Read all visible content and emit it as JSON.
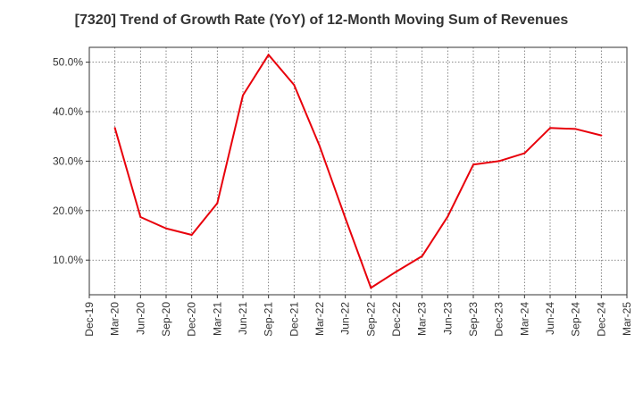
{
  "chart_data": {
    "type": "line",
    "title": "[7320]  Trend of Growth Rate (YoY) of 12-Month Moving Sum of Revenues",
    "xlabel": "",
    "ylabel": "",
    "x_ticks": [
      "Dec-19",
      "Mar-20",
      "Jun-20",
      "Sep-20",
      "Dec-20",
      "Mar-21",
      "Jun-21",
      "Sep-21",
      "Dec-21",
      "Mar-22",
      "Jun-22",
      "Sep-22",
      "Dec-22",
      "Mar-23",
      "Jun-23",
      "Sep-23",
      "Dec-23",
      "Mar-24",
      "Jun-24",
      "Sep-24",
      "Dec-24",
      "Mar-25"
    ],
    "y_ticks": [
      "10.0%",
      "20.0%",
      "30.0%",
      "40.0%",
      "50.0%"
    ],
    "y_tick_values": [
      10,
      20,
      30,
      40,
      50
    ],
    "ylim": [
      3,
      53
    ],
    "grid": true,
    "series": [
      {
        "color": "#e8000b",
        "x": [
          "Mar-20",
          "Jun-20",
          "Sep-20",
          "Dec-20",
          "Mar-21",
          "Jun-21",
          "Sep-21",
          "Dec-21",
          "Mar-22",
          "Jun-22",
          "Sep-22",
          "Dec-22",
          "Mar-23",
          "Jun-23",
          "Sep-23",
          "Dec-23",
          "Mar-24",
          "Jun-24",
          "Sep-24",
          "Dec-24"
        ],
        "values": [
          36.7,
          18.7,
          16.4,
          15.1,
          21.5,
          43.3,
          51.5,
          45.4,
          33.0,
          18.5,
          4.4,
          7.7,
          10.8,
          18.8,
          29.3,
          30.0,
          31.6,
          36.7,
          36.5,
          35.2
        ]
      }
    ]
  }
}
